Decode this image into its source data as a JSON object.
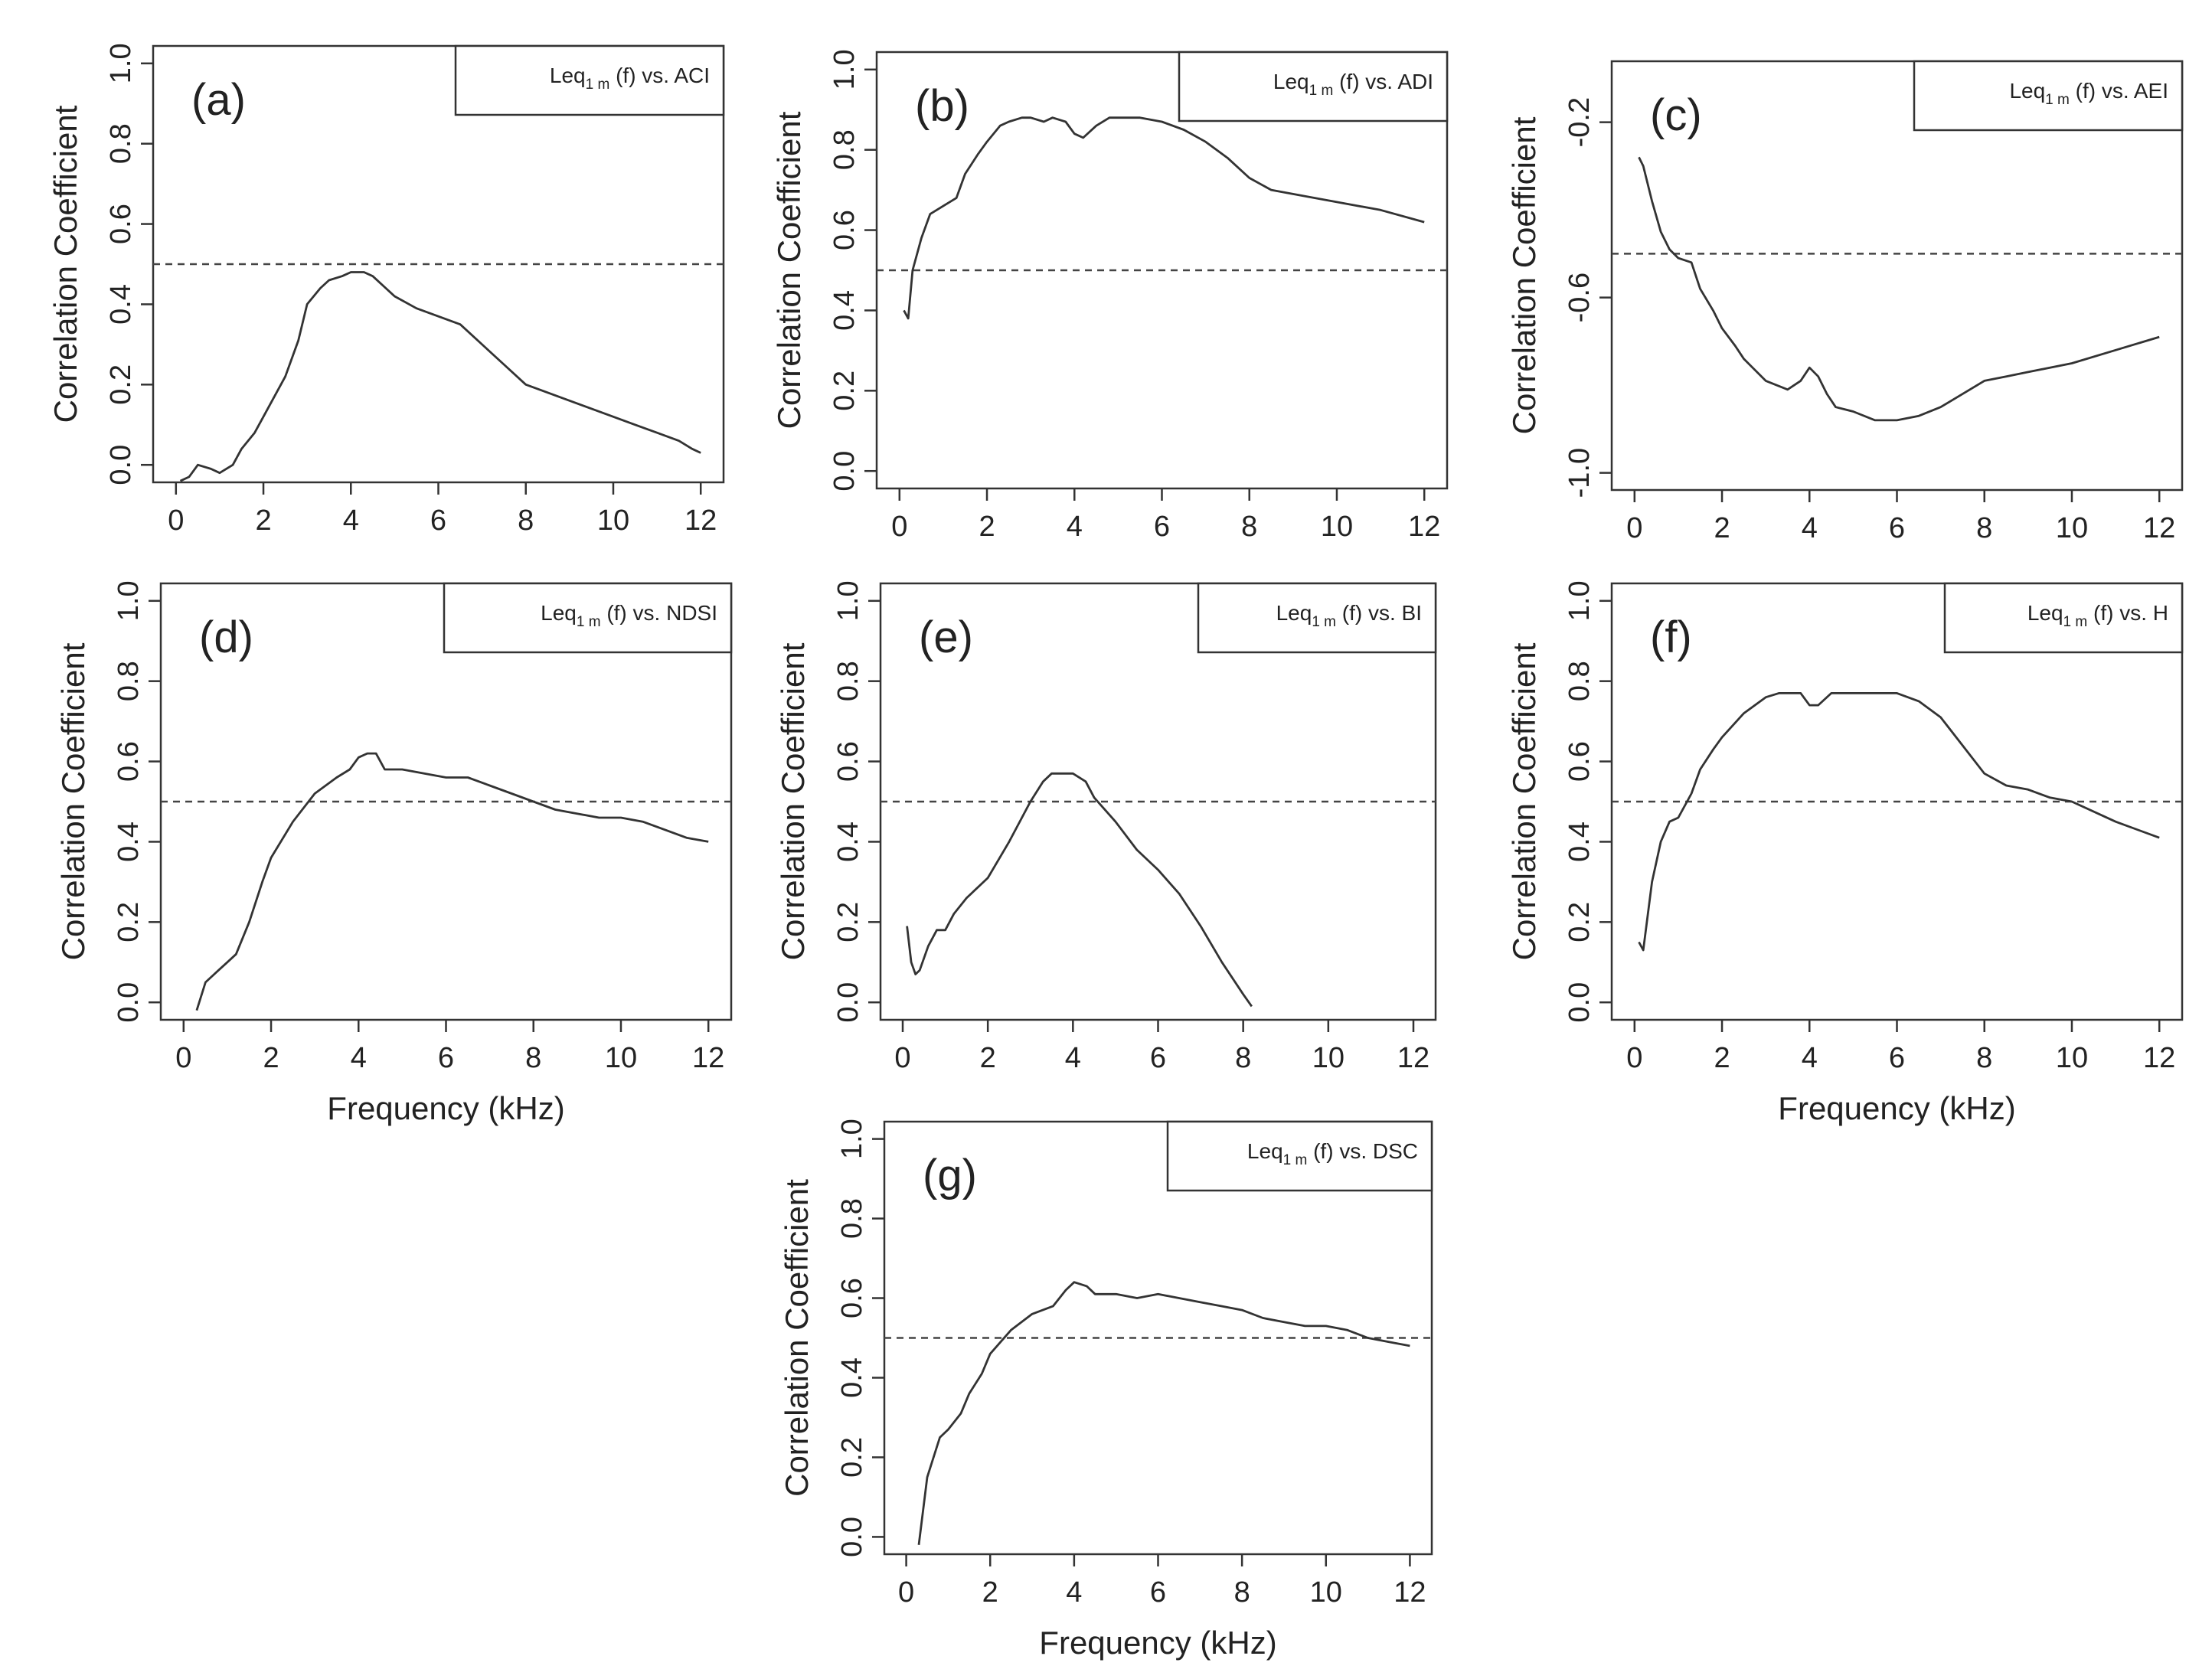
{
  "chart_data": [
    {
      "id": "a",
      "type": "line",
      "panel_label": "(a)",
      "legend": {
        "prefix": "Leq",
        "subscript": "1 m",
        "suffix": " (f) vs. ACI"
      },
      "xlabel": "",
      "ylabel": "Correlation Coefficient",
      "xlim": [
        0,
        12
      ],
      "ylim": [
        0,
        1
      ],
      "xticks": [
        "0",
        "2",
        "4",
        "6",
        "8",
        "10",
        "12"
      ],
      "yticks": [
        "0.0",
        "0.2",
        "0.4",
        "0.6",
        "0.8",
        "1.0"
      ],
      "reference_y": 0.5,
      "x": [
        0.1,
        0.3,
        0.5,
        0.8,
        1.0,
        1.3,
        1.5,
        1.8,
        2.0,
        2.5,
        2.8,
        3.0,
        3.3,
        3.5,
        3.8,
        4.0,
        4.3,
        4.5,
        4.8,
        5.0,
        5.5,
        6.0,
        6.5,
        7.0,
        7.5,
        8.0,
        8.5,
        9.0,
        9.5,
        10.0,
        10.5,
        11.0,
        11.5,
        11.8,
        12.0
      ],
      "y": [
        -0.04,
        -0.03,
        0.0,
        -0.01,
        -0.02,
        0.0,
        0.04,
        0.08,
        0.12,
        0.22,
        0.31,
        0.4,
        0.44,
        0.46,
        0.47,
        0.48,
        0.48,
        0.47,
        0.44,
        0.42,
        0.39,
        0.37,
        0.35,
        0.3,
        0.25,
        0.2,
        0.18,
        0.16,
        0.14,
        0.12,
        0.1,
        0.08,
        0.06,
        0.04,
        0.03
      ]
    },
    {
      "id": "b",
      "type": "line",
      "panel_label": "(b)",
      "legend": {
        "prefix": "Leq",
        "subscript": "1 m",
        "suffix": " (f) vs. ADI"
      },
      "xlabel": "",
      "ylabel": "Correlation Coefficient",
      "xlim": [
        0,
        12
      ],
      "ylim": [
        0,
        1
      ],
      "xticks": [
        "0",
        "2",
        "4",
        "6",
        "8",
        "10",
        "12"
      ],
      "yticks": [
        "0.0",
        "0.2",
        "0.4",
        "0.6",
        "0.8",
        "1.0"
      ],
      "reference_y": 0.5,
      "x": [
        0.1,
        0.2,
        0.3,
        0.5,
        0.7,
        1.0,
        1.3,
        1.5,
        1.8,
        2.0,
        2.3,
        2.5,
        2.8,
        3.0,
        3.3,
        3.5,
        3.8,
        4.0,
        4.2,
        4.5,
        4.8,
        5.0,
        5.5,
        6.0,
        6.5,
        7.0,
        7.5,
        8.0,
        8.5,
        9.0,
        10.0,
        11.0,
        12.0
      ],
      "y": [
        0.4,
        0.38,
        0.5,
        0.58,
        0.64,
        0.66,
        0.68,
        0.74,
        0.79,
        0.82,
        0.86,
        0.87,
        0.88,
        0.88,
        0.87,
        0.88,
        0.87,
        0.84,
        0.83,
        0.86,
        0.88,
        0.88,
        0.88,
        0.87,
        0.85,
        0.82,
        0.78,
        0.73,
        0.7,
        0.69,
        0.67,
        0.65,
        0.62
      ]
    },
    {
      "id": "c",
      "type": "line",
      "panel_label": "(c)",
      "legend": {
        "prefix": "Leq",
        "subscript": "1 m",
        "suffix": " (f) vs. AEI"
      },
      "xlabel": "",
      "ylabel": "Correlation Coefficient",
      "xlim": [
        0,
        12
      ],
      "ylim": [
        -1.0,
        -0.1
      ],
      "xticks": [
        "0",
        "2",
        "4",
        "6",
        "8",
        "10",
        "12"
      ],
      "yticks": [
        "-1.0",
        "-0.6",
        "-0.2"
      ],
      "ytick_values": [
        -1.0,
        -0.6,
        -0.2
      ],
      "reference_y": -0.5,
      "x": [
        0.1,
        0.2,
        0.4,
        0.6,
        0.8,
        1.0,
        1.3,
        1.5,
        1.8,
        2.0,
        2.3,
        2.5,
        3.0,
        3.5,
        3.8,
        4.0,
        4.2,
        4.4,
        4.6,
        5.0,
        5.5,
        6.0,
        6.5,
        7.0,
        7.5,
        8.0,
        8.5,
        9.0,
        10.0,
        11.0,
        12.0
      ],
      "y": [
        -0.28,
        -0.3,
        -0.38,
        -0.45,
        -0.49,
        -0.51,
        -0.52,
        -0.58,
        -0.63,
        -0.67,
        -0.71,
        -0.74,
        -0.79,
        -0.81,
        -0.79,
        -0.76,
        -0.78,
        -0.82,
        -0.85,
        -0.86,
        -0.88,
        -0.88,
        -0.87,
        -0.85,
        -0.82,
        -0.79,
        -0.78,
        -0.77,
        -0.75,
        -0.72,
        -0.69
      ]
    },
    {
      "id": "d",
      "type": "line",
      "panel_label": "(d)",
      "legend": {
        "prefix": "Leq",
        "subscript": "1 m",
        "suffix": " (f) vs. NDSI"
      },
      "xlabel": "Frequency (kHz)",
      "ylabel": "Correlation Coefficient",
      "xlim": [
        0,
        12
      ],
      "ylim": [
        0,
        1
      ],
      "xticks": [
        "0",
        "2",
        "4",
        "6",
        "8",
        "10",
        "12"
      ],
      "yticks": [
        "0.0",
        "0.2",
        "0.4",
        "0.6",
        "0.8",
        "1.0"
      ],
      "reference_y": 0.5,
      "x": [
        0.3,
        0.5,
        0.8,
        1.0,
        1.2,
        1.5,
        1.8,
        2.0,
        2.5,
        3.0,
        3.5,
        3.8,
        4.0,
        4.2,
        4.4,
        4.6,
        5.0,
        5.5,
        6.0,
        6.5,
        7.0,
        7.5,
        8.0,
        8.5,
        9.0,
        9.5,
        10.0,
        10.5,
        11.0,
        11.5,
        12.0
      ],
      "y": [
        -0.02,
        0.05,
        0.08,
        0.1,
        0.12,
        0.2,
        0.3,
        0.36,
        0.45,
        0.52,
        0.56,
        0.58,
        0.61,
        0.62,
        0.62,
        0.58,
        0.58,
        0.57,
        0.56,
        0.56,
        0.54,
        0.52,
        0.5,
        0.48,
        0.47,
        0.46,
        0.46,
        0.45,
        0.43,
        0.41,
        0.4
      ]
    },
    {
      "id": "e",
      "type": "line",
      "panel_label": "(e)",
      "legend": {
        "prefix": "Leq",
        "subscript": "1 m",
        "suffix": " (f) vs. BI"
      },
      "xlabel": "",
      "ylabel": "Correlation Coefficient",
      "xlim": [
        0,
        12
      ],
      "ylim": [
        0,
        1
      ],
      "xticks": [
        "0",
        "2",
        "4",
        "6",
        "8",
        "10",
        "12"
      ],
      "yticks": [
        "0.0",
        "0.2",
        "0.4",
        "0.6",
        "0.8",
        "1.0"
      ],
      "reference_y": 0.5,
      "x": [
        0.1,
        0.2,
        0.3,
        0.4,
        0.6,
        0.8,
        1.0,
        1.2,
        1.5,
        2.0,
        2.5,
        3.0,
        3.3,
        3.5,
        3.8,
        4.0,
        4.3,
        4.5,
        5.0,
        5.5,
        6.0,
        6.5,
        7.0,
        7.5,
        8.0,
        8.2
      ],
      "y": [
        0.19,
        0.1,
        0.07,
        0.08,
        0.14,
        0.18,
        0.18,
        0.22,
        0.26,
        0.31,
        0.4,
        0.5,
        0.55,
        0.57,
        0.57,
        0.57,
        0.55,
        0.51,
        0.45,
        0.38,
        0.33,
        0.27,
        0.19,
        0.1,
        0.02,
        -0.01
      ]
    },
    {
      "id": "f",
      "type": "line",
      "panel_label": "(f)",
      "legend": {
        "prefix": "Leq",
        "subscript": "1 m",
        "suffix": " (f) vs. H"
      },
      "xlabel": "Frequency (kHz)",
      "ylabel": "Correlation Coefficient",
      "xlim": [
        0,
        12
      ],
      "ylim": [
        0,
        1
      ],
      "xticks": [
        "0",
        "2",
        "4",
        "6",
        "8",
        "10",
        "12"
      ],
      "yticks": [
        "0.0",
        "0.2",
        "0.4",
        "0.6",
        "0.8",
        "1.0"
      ],
      "reference_y": 0.5,
      "x": [
        0.1,
        0.2,
        0.4,
        0.6,
        0.8,
        1.0,
        1.3,
        1.5,
        1.8,
        2.0,
        2.5,
        3.0,
        3.3,
        3.5,
        3.8,
        4.0,
        4.2,
        4.5,
        5.0,
        5.5,
        6.0,
        6.5,
        7.0,
        7.5,
        8.0,
        8.5,
        9.0,
        9.5,
        10.0,
        11.0,
        12.0
      ],
      "y": [
        0.15,
        0.13,
        0.3,
        0.4,
        0.45,
        0.46,
        0.52,
        0.58,
        0.63,
        0.66,
        0.72,
        0.76,
        0.77,
        0.77,
        0.77,
        0.74,
        0.74,
        0.77,
        0.77,
        0.77,
        0.77,
        0.75,
        0.71,
        0.64,
        0.57,
        0.54,
        0.53,
        0.51,
        0.5,
        0.45,
        0.41
      ]
    },
    {
      "id": "g",
      "type": "line",
      "panel_label": "(g)",
      "legend": {
        "prefix": "Leq",
        "subscript": "1 m",
        "suffix": " (f) vs. DSC"
      },
      "xlabel": "Frequency (kHz)",
      "ylabel": "Correlation Coefficient",
      "xlim": [
        0,
        12
      ],
      "ylim": [
        0,
        1
      ],
      "xticks": [
        "0",
        "2",
        "4",
        "6",
        "8",
        "10",
        "12"
      ],
      "yticks": [
        "0.0",
        "0.2",
        "0.4",
        "0.6",
        "0.8",
        "1.0"
      ],
      "reference_y": 0.5,
      "x": [
        0.3,
        0.5,
        0.8,
        1.0,
        1.3,
        1.5,
        1.8,
        2.0,
        2.5,
        3.0,
        3.5,
        3.8,
        4.0,
        4.3,
        4.5,
        5.0,
        5.5,
        6.0,
        6.5,
        7.0,
        7.5,
        8.0,
        8.5,
        9.0,
        9.5,
        10.0,
        10.5,
        11.0,
        11.5,
        12.0
      ],
      "y": [
        -0.02,
        0.15,
        0.25,
        0.27,
        0.31,
        0.36,
        0.41,
        0.46,
        0.52,
        0.56,
        0.58,
        0.62,
        0.64,
        0.63,
        0.61,
        0.61,
        0.6,
        0.61,
        0.6,
        0.59,
        0.58,
        0.57,
        0.55,
        0.54,
        0.53,
        0.53,
        0.52,
        0.5,
        0.49,
        0.48
      ]
    }
  ]
}
